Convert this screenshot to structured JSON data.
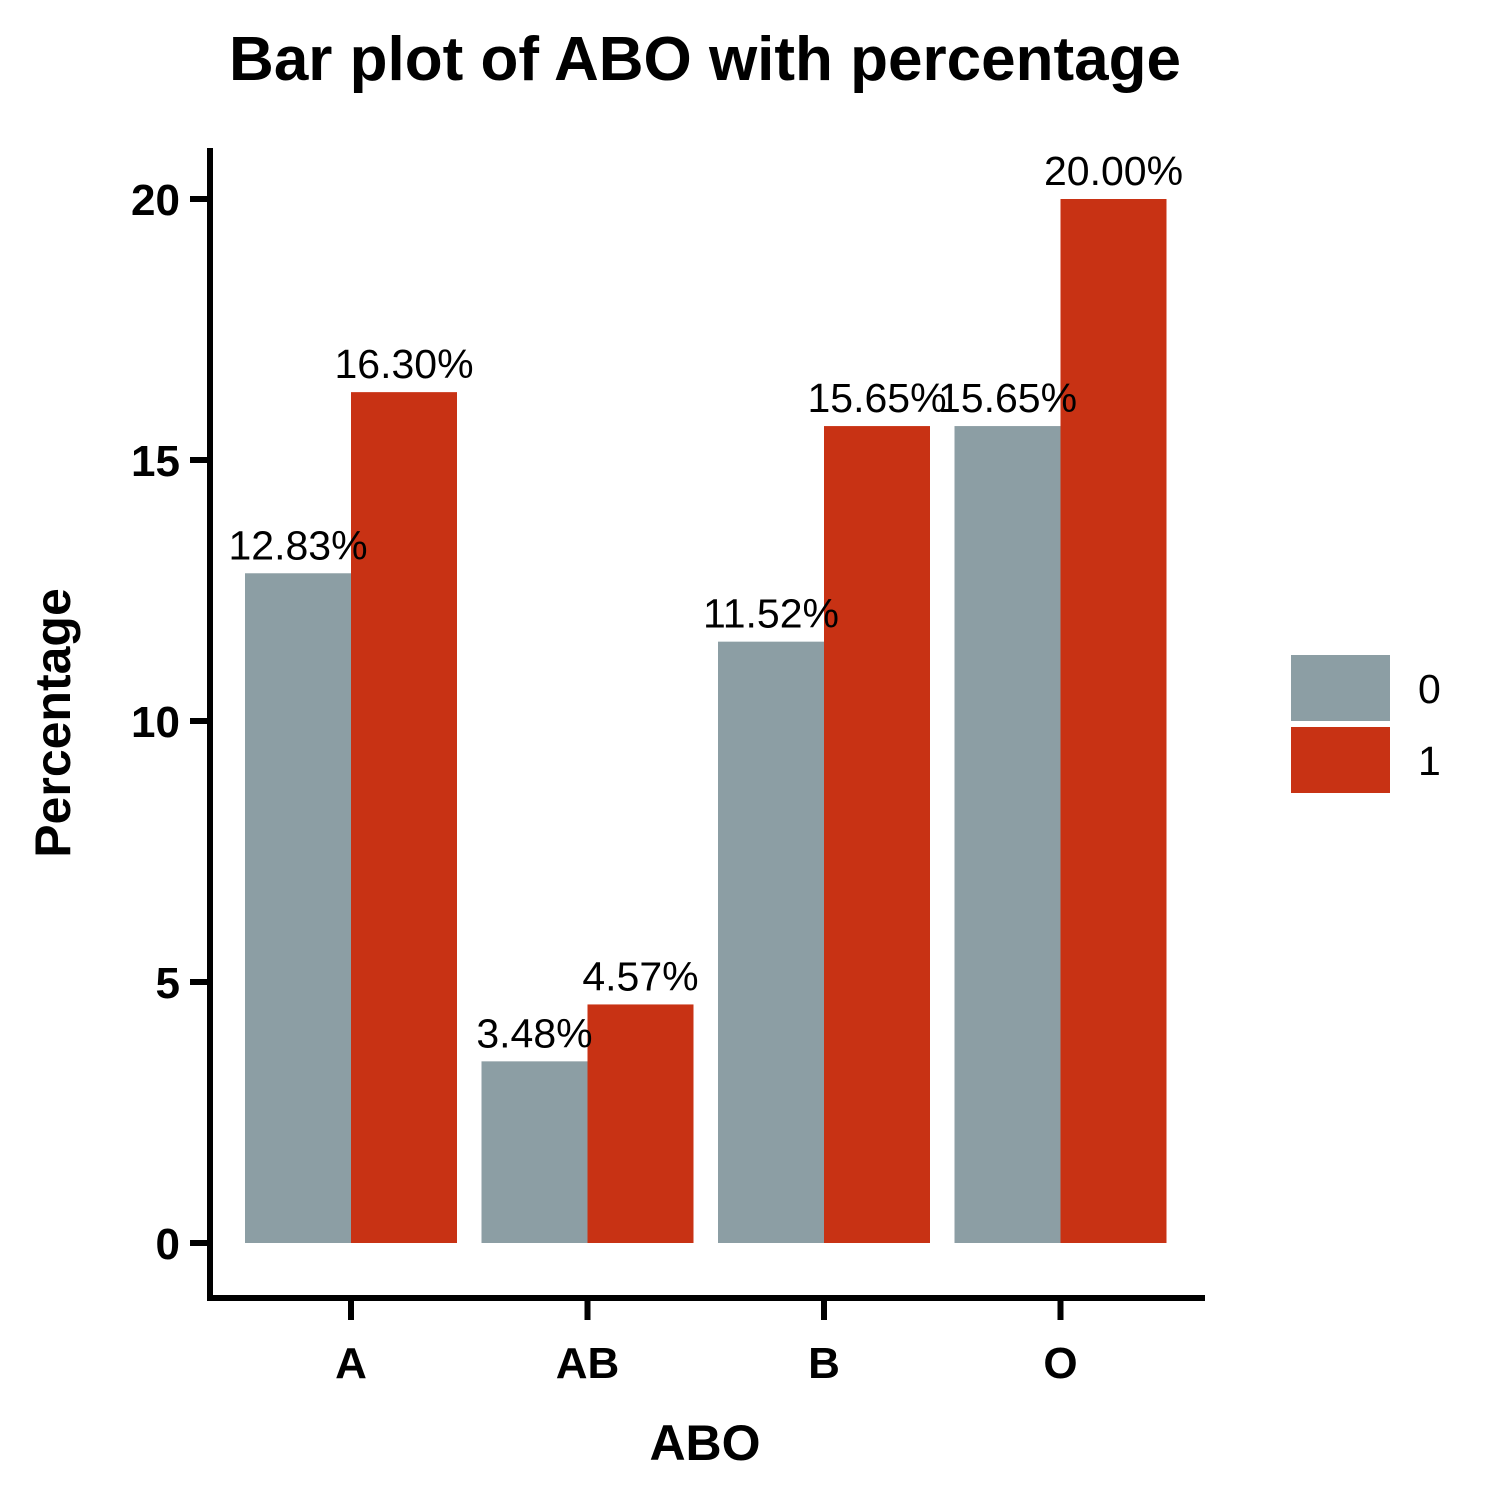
{
  "chart_data": {
    "type": "bar",
    "title": "Bar plot of ABO with percentage",
    "xlabel": "ABO",
    "ylabel": "Percentage",
    "categories": [
      "A",
      "AB",
      "B",
      "O"
    ],
    "yticks": [
      0,
      5,
      10,
      15,
      20
    ],
    "ylim": [
      -1,
      21
    ],
    "grid": false,
    "legend_position": "right",
    "series": [
      {
        "name": "0",
        "color": "#8C9EA4",
        "values": [
          12.83,
          3.48,
          11.52,
          15.65
        ],
        "labels": [
          "12.83%",
          "3.48%",
          "11.52%",
          "15.65%"
        ]
      },
      {
        "name": "1",
        "color": "#C83214",
        "values": [
          16.3,
          4.57,
          15.65,
          20.0
        ],
        "labels": [
          "16.30%",
          "4.57%",
          "15.65%",
          "20.00%"
        ]
      }
    ]
  }
}
